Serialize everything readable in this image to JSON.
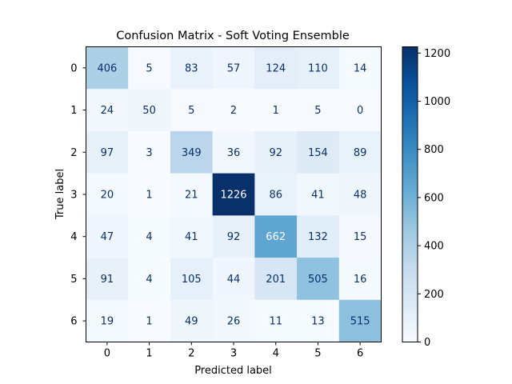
{
  "chart_data": {
    "type": "heatmap",
    "title": "Confusion Matrix - Soft Voting Ensemble",
    "xlabel": "Predicted label",
    "ylabel": "True label",
    "x_categories": [
      "0",
      "1",
      "2",
      "3",
      "4",
      "5",
      "6"
    ],
    "y_categories": [
      "0",
      "1",
      "2",
      "3",
      "4",
      "5",
      "6"
    ],
    "values": [
      [
        406,
        5,
        83,
        57,
        124,
        110,
        14
      ],
      [
        24,
        50,
        5,
        2,
        1,
        5,
        0
      ],
      [
        97,
        3,
        349,
        36,
        92,
        154,
        89
      ],
      [
        20,
        1,
        21,
        1226,
        86,
        41,
        48
      ],
      [
        47,
        4,
        41,
        92,
        662,
        132,
        15
      ],
      [
        91,
        4,
        105,
        44,
        201,
        505,
        16
      ],
      [
        19,
        1,
        49,
        26,
        11,
        13,
        515
      ]
    ],
    "colormap": "Blues",
    "colorbar": {
      "range": [
        0,
        1226
      ],
      "ticks": [
        0,
        200,
        400,
        600,
        800,
        1000,
        1200
      ]
    }
  }
}
